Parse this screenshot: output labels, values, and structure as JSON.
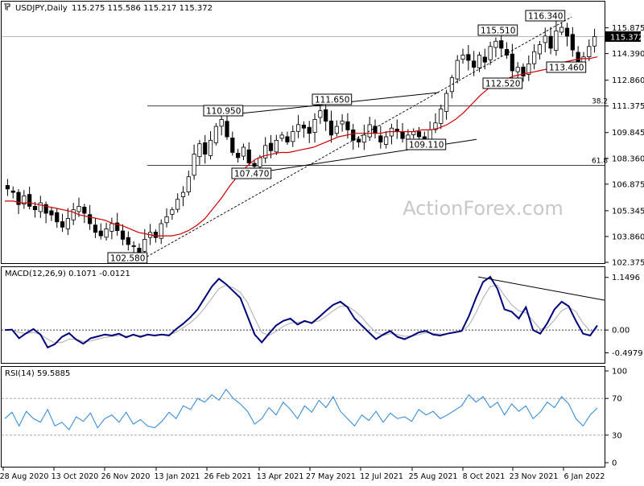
{
  "chart_data": [
    {
      "type": "candlestick",
      "panel": "price",
      "title": "USDJPY,Daily",
      "ohlc_readout": "115.275 115.586 115.217 115.372",
      "current_price_label": "115.372",
      "ylim": [
        102.375,
        116.5
      ],
      "y_ticks": [
        "115.875",
        "114.390",
        "112.860",
        "111.375",
        "109.845",
        "108.360",
        "106.875",
        "105.345",
        "103.860",
        "102.375"
      ],
      "x_ticks": [
        "28 Aug 2020",
        "13 Oct 2020",
        "26 Nov 2020",
        "13 Jan 2021",
        "26 Feb 2021",
        "13 Apr 2021",
        "27 May 2021",
        "12 Jul 2021",
        "25 Aug 2021",
        "8 Oct 2021",
        "23 Nov 2021",
        "6 Jan 2022"
      ],
      "close_series": [
        106.6,
        106.4,
        105.7,
        106.2,
        105.6,
        105.4,
        105.8,
        105.2,
        105.1,
        104.7,
        104.4,
        104.9,
        105.4,
        105.6,
        105.2,
        104.6,
        104.1,
        103.9,
        104.3,
        104.6,
        104.2,
        103.7,
        103.4,
        103.3,
        102.9,
        103.7,
        104.1,
        103.8,
        104.6,
        105.0,
        105.4,
        106.0,
        106.4,
        107.3,
        108.6,
        109.2,
        108.6,
        109.4,
        110.2,
        110.6,
        109.6,
        108.7,
        108.4,
        109.0,
        108.1,
        107.9,
        108.4,
        109.1,
        108.8,
        109.4,
        109.7,
        109.3,
        109.9,
        110.3,
        110.1,
        109.8,
        110.6,
        111.1,
        110.5,
        109.7,
        110.2,
        110.5,
        110.0,
        109.4,
        109.3,
        109.7,
        110.3,
        109.8,
        109.3,
        109.6,
        110.1,
        109.9,
        109.5,
        109.7,
        109.9,
        109.6,
        109.4,
        110.0,
        110.4,
        111.2,
        112.1,
        113.0,
        114.0,
        114.3,
        114.0,
        113.6,
        114.3,
        113.9,
        114.8,
        115.1,
        114.7,
        114.3,
        113.4,
        113.6,
        113.1,
        113.8,
        114.5,
        114.9,
        115.4,
        114.7,
        115.7,
        115.9,
        115.4,
        114.6,
        113.8,
        114.2,
        114.8,
        115.372
      ],
      "sma_series": [
        105.9,
        105.9,
        105.8,
        105.8,
        105.7,
        105.6,
        105.5,
        105.4,
        105.3,
        105.1,
        105.0,
        104.9,
        104.8,
        104.6,
        104.5,
        104.3,
        104.1,
        104.0,
        103.9,
        103.9,
        103.9,
        104.0,
        104.2,
        104.5,
        104.9,
        105.5,
        106.1,
        106.8,
        107.4,
        107.9,
        108.3,
        108.5,
        108.6,
        108.7,
        108.7,
        108.8,
        108.9,
        109.0,
        109.2,
        109.4,
        109.6,
        109.7,
        109.8,
        109.8,
        109.8,
        109.8,
        109.9,
        109.9,
        109.9,
        109.9,
        110.0,
        110.0,
        110.1,
        110.3,
        110.6,
        111.0,
        111.5,
        112.0,
        112.4,
        112.7,
        112.9,
        113.1,
        113.2,
        113.3,
        113.4,
        113.5,
        113.7,
        113.9,
        114.0,
        114.1,
        114.1,
        114.2
      ],
      "annotations": [
        {
          "label": "102.580",
          "kind": "low"
        },
        {
          "label": "110.950",
          "kind": "high"
        },
        {
          "label": "107.470",
          "kind": "low"
        },
        {
          "label": "111.650",
          "kind": "high"
        },
        {
          "label": "109.110",
          "kind": "low"
        },
        {
          "label": "115.510",
          "kind": "high"
        },
        {
          "label": "112.520",
          "kind": "low"
        },
        {
          "label": "116.340",
          "kind": "high"
        },
        {
          "label": "113.460",
          "kind": "low"
        }
      ],
      "fib_levels": [
        {
          "label": "38.2",
          "price": 111.375
        },
        {
          "label": "61.8",
          "price": 107.95
        }
      ],
      "watermark": "ActionForex.com"
    },
    {
      "type": "line",
      "panel": "macd",
      "title": "MACD(12,26,9) 0.1071 -0.0121",
      "ylim": [
        -0.7,
        1.25
      ],
      "y_ticks": [
        "1.1496",
        "0.00",
        "-0.4979"
      ],
      "y_tick_values": [
        1.1496,
        0.0,
        -0.4979
      ],
      "current_value_label": "0.00",
      "macd_series": [
        0.0,
        0.01,
        -0.18,
        -0.07,
        0.02,
        -0.1,
        -0.38,
        -0.31,
        -0.15,
        -0.07,
        -0.21,
        -0.3,
        -0.18,
        -0.14,
        -0.1,
        -0.12,
        -0.08,
        -0.16,
        -0.1,
        -0.15,
        -0.1,
        -0.12,
        -0.1,
        -0.12,
        0.02,
        0.14,
        0.28,
        0.45,
        0.7,
        0.95,
        1.12,
        1.0,
        0.85,
        0.7,
        0.3,
        -0.1,
        -0.27,
        -0.08,
        0.1,
        0.2,
        0.25,
        0.12,
        0.2,
        0.15,
        0.28,
        0.42,
        0.55,
        0.62,
        0.5,
        0.25,
        0.1,
        -0.05,
        -0.2,
        -0.1,
        -0.02,
        -0.15,
        -0.2,
        -0.13,
        -0.05,
        -0.02,
        -0.1,
        -0.12,
        -0.08,
        -0.05,
        -0.02,
        0.3,
        0.7,
        1.05,
        1.16,
        0.9,
        0.45,
        0.4,
        0.25,
        0.5,
        0.0,
        -0.08,
        0.15,
        0.45,
        0.62,
        0.52,
        0.2,
        -0.08,
        -0.12,
        0.1
      ],
      "signal_series": [
        0.0,
        0.0,
        -0.05,
        -0.08,
        -0.05,
        -0.1,
        -0.2,
        -0.28,
        -0.27,
        -0.2,
        -0.2,
        -0.25,
        -0.24,
        -0.2,
        -0.16,
        -0.14,
        -0.12,
        -0.13,
        -0.12,
        -0.12,
        -0.11,
        -0.11,
        -0.1,
        -0.1,
        -0.05,
        0.05,
        0.16,
        0.3,
        0.48,
        0.7,
        0.9,
        0.98,
        0.92,
        0.82,
        0.6,
        0.25,
        -0.05,
        -0.12,
        -0.03,
        0.08,
        0.15,
        0.17,
        0.18,
        0.17,
        0.2,
        0.3,
        0.42,
        0.52,
        0.52,
        0.42,
        0.28,
        0.1,
        -0.05,
        -0.12,
        -0.08,
        -0.1,
        -0.14,
        -0.13,
        -0.1,
        -0.06,
        -0.07,
        -0.09,
        -0.08,
        -0.06,
        -0.03,
        0.1,
        0.38,
        0.7,
        0.95,
        0.98,
        0.75,
        0.55,
        0.42,
        0.38,
        0.2,
        0.02,
        0.05,
        0.22,
        0.42,
        0.5,
        0.4,
        0.15,
        -0.02,
        0.02
      ],
      "trendline": "descending resistance from MACD peak"
    },
    {
      "type": "line",
      "panel": "rsi",
      "title": "RSI(14) 59.5885",
      "ylim": [
        0,
        100
      ],
      "y_ticks": [
        "100",
        "70",
        "30",
        "0"
      ],
      "y_tick_values": [
        100,
        70,
        30,
        0
      ],
      "levels": [
        70,
        30
      ],
      "rsi_series": [
        48,
        55,
        40,
        56,
        48,
        44,
        58,
        40,
        44,
        36,
        50,
        45,
        54,
        38,
        48,
        52,
        44,
        55,
        42,
        47,
        40,
        38,
        45,
        55,
        48,
        62,
        58,
        70,
        66,
        74,
        68,
        80,
        70,
        64,
        56,
        42,
        48,
        60,
        52,
        66,
        58,
        48,
        62,
        55,
        68,
        60,
        72,
        56,
        48,
        40,
        52,
        46,
        56,
        44,
        54,
        48,
        50,
        45,
        58,
        52,
        56,
        48,
        52,
        57,
        62,
        74,
        66,
        72,
        60,
        66,
        52,
        64,
        56,
        62,
        48,
        55,
        66,
        60,
        72,
        64,
        48,
        40,
        52,
        59.5885
      ]
    }
  ]
}
